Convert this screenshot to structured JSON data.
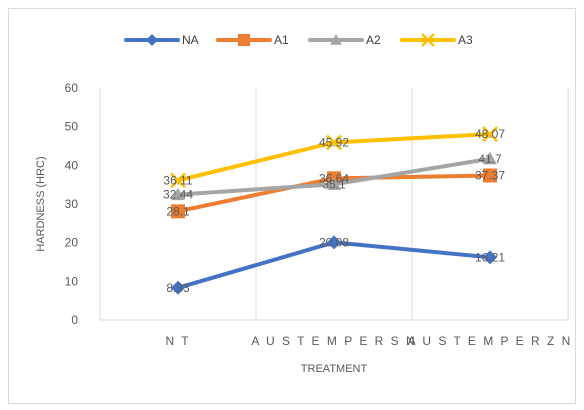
{
  "chart_data": {
    "type": "line",
    "title": "",
    "xlabel": "TREATMENT",
    "ylabel": "HARDNESS (HRC)",
    "categories": [
      "N T",
      "A U S T E M P E R  S N",
      "A U S T E M P E R  Z N"
    ],
    "ylim": [
      0,
      60
    ],
    "yticks": [
      0,
      10,
      20,
      30,
      40,
      50,
      60
    ],
    "grid": "vertical",
    "legend": "top",
    "series": [
      {
        "name": "NA",
        "values": [
          8.33,
          20.08,
          16.21
        ],
        "labels": [
          "8.33",
          "20.08",
          "16.21"
        ],
        "color": "#4472C4",
        "marker": "diamond"
      },
      {
        "name": "A1",
        "values": [
          28.1,
          36.64,
          37.37
        ],
        "labels": [
          "28.1",
          "36.64",
          "37.37"
        ],
        "color": "#ED7D31",
        "marker": "square"
      },
      {
        "name": "A2",
        "values": [
          32.44,
          35.1,
          41.7
        ],
        "labels": [
          "32.44",
          "35.1",
          "41.7"
        ],
        "color": "#A5A5A5",
        "marker": "triangle"
      },
      {
        "name": "A3",
        "values": [
          36.11,
          45.92,
          48.07
        ],
        "labels": [
          "36.11",
          "45.92",
          "48.07"
        ],
        "color": "#FFC000",
        "marker": "x"
      }
    ]
  }
}
